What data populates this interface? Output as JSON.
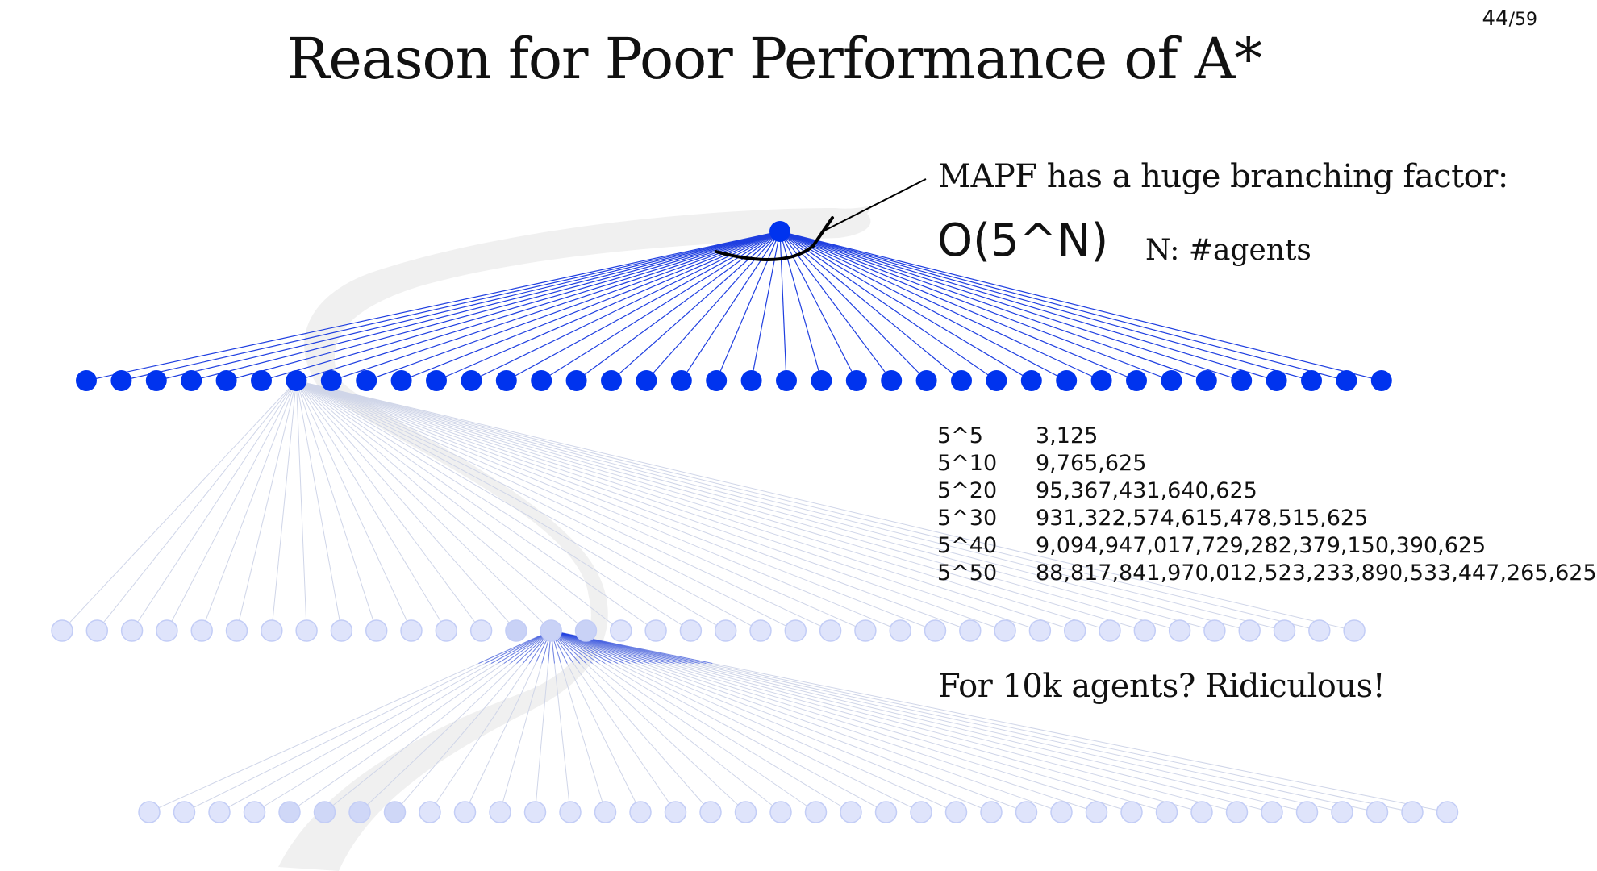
{
  "slide": {
    "title": "Reason for Poor Performance of A*",
    "page_current": "44",
    "page_total": "/59"
  },
  "annotation": {
    "branching_text": "MAPF has a huge branching factor:",
    "complexity": "O(5^N)",
    "n_label": "N: #agents",
    "conclusion": "For 10k agents? Ridiculous!"
  },
  "powers_table": [
    {
      "exp": "5^5",
      "value": "3,125"
    },
    {
      "exp": "5^10",
      "value": "9,765,625"
    },
    {
      "exp": "5^20",
      "value": "95,367,431,640,625"
    },
    {
      "exp": "5^30",
      "value": "931,322,574,615,478,515,625"
    },
    {
      "exp": "5^40",
      "value": "9,094,947,017,729,282,379,150,390,625"
    },
    {
      "exp": "5^50",
      "value": "88,817,841,970,012,523,233,890,533,447,265,625"
    }
  ],
  "tree": {
    "level1_node_count": 38,
    "level2_node_count": 38,
    "level3_node_count": 38,
    "expanded_level1_index": 6,
    "expanded_level2_index": 14,
    "colors": {
      "active_node": "#0033ee",
      "active_edge": "#1f3fe0",
      "faded_node_fill": "#dfe4fb",
      "faded_node_stroke": "#c3cdf6",
      "faded_edge": "#cfd5e8",
      "highlight_band": "#eeeeee",
      "annotation": "#000000"
    }
  }
}
